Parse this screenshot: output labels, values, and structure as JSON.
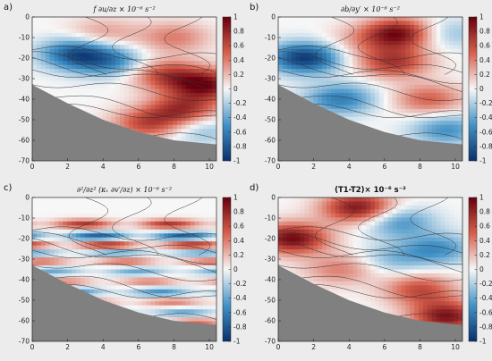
{
  "figure": {
    "panels": [
      {
        "letter": "a)",
        "title": "f ∂u/∂z × 10⁻⁶ s⁻²"
      },
      {
        "letter": "b)",
        "title": "∂b/∂y′ × 10⁻⁶ s⁻²"
      },
      {
        "letter": "c)",
        "title": "∂²/∂z² (κᵥ ∂v′/∂z) × 10⁻⁶ s⁻²"
      },
      {
        "letter": "d)",
        "title": "(T1-T2)× 10⁻⁶ s⁻²"
      }
    ]
  },
  "colors": {
    "terrain": "#808080",
    "panel_bg": "#ececec",
    "contour": "#333333",
    "cmap_negative": "#08306b",
    "cmap_zero": "#f7f7f7",
    "cmap_positive": "#67000d"
  },
  "chart_data": [
    {
      "type": "heatmap",
      "panel": "a",
      "title": "f ∂u/∂z × 10⁻⁶ s⁻²",
      "x_ticks": [
        0,
        2,
        4,
        6,
        8,
        10
      ],
      "y_ticks": [
        0,
        -10,
        -20,
        -30,
        -40,
        -50,
        -60,
        -70
      ],
      "xlim": [
        0,
        10.4
      ],
      "ylim": [
        -70,
        0
      ],
      "colorbar_ticks": [
        1,
        0.8,
        0.6,
        0.4,
        0.2,
        0,
        -0.2,
        -0.4,
        -0.6,
        -0.8,
        -1
      ],
      "colorbar_range": [
        -1,
        1
      ],
      "grid": false,
      "features": [
        {
          "x": 2.5,
          "y": -18,
          "value": -0.8
        },
        {
          "x": 4.5,
          "y": -22,
          "value": -0.5
        },
        {
          "x": 7.5,
          "y": -28,
          "value": 0.6
        },
        {
          "x": 9.8,
          "y": -33,
          "value": 0.9
        },
        {
          "x": 8.5,
          "y": -45,
          "value": 0.7
        },
        {
          "x": 6.5,
          "y": -52,
          "value": 0.6
        },
        {
          "x": 9.5,
          "y": -55,
          "value": -0.3
        },
        {
          "x": 4,
          "y": -8,
          "value": 0.3
        },
        {
          "x": 8,
          "y": -10,
          "value": 0.4
        }
      ]
    },
    {
      "type": "heatmap",
      "panel": "b",
      "title": "∂b/∂y′ × 10⁻⁶ s⁻²",
      "x_ticks": [
        0,
        2,
        4,
        6,
        8,
        10
      ],
      "y_ticks": [
        0,
        -10,
        -20,
        -30,
        -40,
        -50,
        -60,
        -70
      ],
      "xlim": [
        0,
        10.4
      ],
      "ylim": [
        -70,
        0
      ],
      "colorbar_ticks": [
        1,
        0.8,
        0.6,
        0.4,
        0.2,
        0,
        -0.2,
        -0.4,
        -0.6,
        -0.8,
        -1
      ],
      "colorbar_range": [
        -1,
        1
      ],
      "grid": false,
      "features": [
        {
          "x": 1.5,
          "y": -20,
          "value": -0.95
        },
        {
          "x": 6.8,
          "y": -8,
          "value": 0.95
        },
        {
          "x": 6.5,
          "y": -22,
          "value": 0.7
        },
        {
          "x": 3.5,
          "y": -40,
          "value": -0.6
        },
        {
          "x": 8.5,
          "y": -40,
          "value": 0.5
        },
        {
          "x": 9.5,
          "y": -55,
          "value": -0.5
        },
        {
          "x": 9.5,
          "y": -8,
          "value": -0.3
        },
        {
          "x": 4.5,
          "y": -12,
          "value": 0.2
        }
      ]
    },
    {
      "type": "heatmap",
      "panel": "c",
      "title": "∂²/∂z² (κᵥ ∂v′/∂z) × 10⁻⁶ s⁻²",
      "x_ticks": [
        0,
        2,
        4,
        6,
        8,
        10
      ],
      "y_ticks": [
        0,
        -10,
        -20,
        -30,
        -40,
        -50,
        -60,
        -70
      ],
      "xlim": [
        0,
        10.4
      ],
      "ylim": [
        -70,
        0
      ],
      "colorbar_ticks": [
        1,
        0.8,
        0.6,
        0.4,
        0.2,
        0,
        -0.2,
        -0.4,
        -0.6,
        -0.8,
        -1
      ],
      "colorbar_range": [
        -1,
        1
      ],
      "grid": false,
      "bands": [
        {
          "y": -13,
          "value": 0.7
        },
        {
          "y": -19,
          "value": -0.8
        },
        {
          "y": -23,
          "value": 0.8
        },
        {
          "y": -27,
          "value": -0.5
        },
        {
          "y": -31,
          "value": 0.5
        },
        {
          "y": -36,
          "value": -0.4
        },
        {
          "y": -41,
          "value": 0.4
        },
        {
          "y": -46,
          "value": -0.5
        },
        {
          "y": -51,
          "value": 0.4
        },
        {
          "y": -56,
          "value": -0.4
        },
        {
          "y": -61,
          "value": 0.5
        }
      ]
    },
    {
      "type": "heatmap",
      "panel": "d",
      "title": "(T1-T2)× 10⁻⁶ s⁻²",
      "x_ticks": [
        0,
        2,
        4,
        6,
        8,
        10
      ],
      "y_ticks": [
        0,
        -10,
        -20,
        -30,
        -40,
        -50,
        -60,
        -70
      ],
      "xlim": [
        0,
        10.4
      ],
      "ylim": [
        -70,
        0
      ],
      "colorbar_ticks": [
        1,
        0.8,
        0.6,
        0.4,
        0.2,
        0,
        -0.2,
        -0.4,
        -0.6,
        -0.8,
        -1
      ],
      "colorbar_range": [
        -1,
        1
      ],
      "grid": false,
      "features": [
        {
          "x": 0.8,
          "y": -20,
          "value": 0.95
        },
        {
          "x": 4.5,
          "y": -5,
          "value": 0.9
        },
        {
          "x": 6.8,
          "y": -12,
          "value": -0.5
        },
        {
          "x": 9,
          "y": -25,
          "value": -0.5
        },
        {
          "x": 3.5,
          "y": -35,
          "value": 0.4
        },
        {
          "x": 8,
          "y": -45,
          "value": 0.6
        },
        {
          "x": 9.5,
          "y": -58,
          "value": 0.9
        },
        {
          "x": 6.5,
          "y": -30,
          "value": -0.3
        }
      ]
    }
  ]
}
